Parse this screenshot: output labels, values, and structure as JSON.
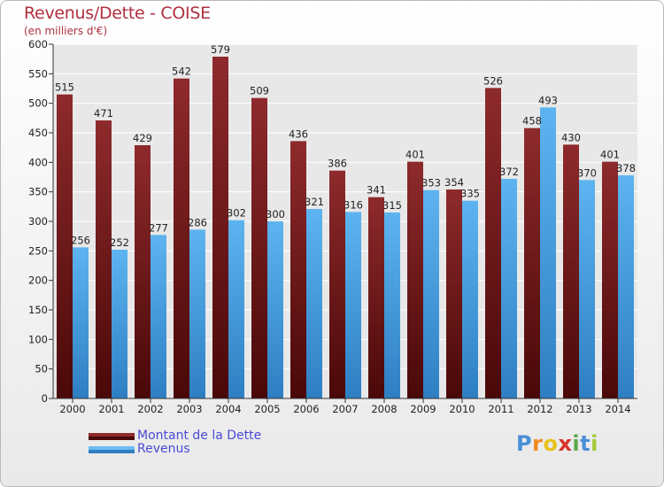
{
  "header": {
    "title": "Revenus/Dette - COISE",
    "subtitle": "(en milliers d'€)"
  },
  "legend": {
    "items": [
      {
        "label": "Montant de la Dette",
        "color": "#7a1c1e"
      },
      {
        "label": "Revenus",
        "color": "#4ea6e6"
      }
    ]
  },
  "logo": {
    "text": "Proxiti",
    "letters": [
      "P",
      "r",
      "o",
      "x",
      "i",
      "t",
      "i"
    ]
  },
  "colors": {
    "title": "#b03040",
    "legend_text": "#4a4ad8",
    "dette_bar": "#7a1c1e",
    "revenus_bar": "#4ea6e6",
    "grid": "#ffffff",
    "plot_bg": "#e8e8e8"
  },
  "chart_data": {
    "type": "bar",
    "title": "Revenus/Dette - COISE",
    "subtitle": "(en milliers d'€)",
    "categories": [
      "2000",
      "2001",
      "2002",
      "2003",
      "2004",
      "2005",
      "2006",
      "2007",
      "2008",
      "2009",
      "2010",
      "2011",
      "2012",
      "2013",
      "2014"
    ],
    "series": [
      {
        "name": "Montant de la Dette",
        "values": [
          515,
          471,
          429,
          542,
          579,
          509,
          436,
          386,
          341,
          401,
          354,
          526,
          458,
          430,
          401
        ]
      },
      {
        "name": "Revenus",
        "values": [
          256,
          252,
          277,
          286,
          302,
          300,
          321,
          316,
          315,
          353,
          335,
          372,
          493,
          370,
          378
        ]
      }
    ],
    "ylim": [
      0,
      600
    ],
    "yticks": [
      0,
      50,
      100,
      150,
      200,
      250,
      300,
      350,
      400,
      450,
      500,
      550,
      600
    ],
    "grid": true,
    "legend_position": "bottom-left"
  }
}
